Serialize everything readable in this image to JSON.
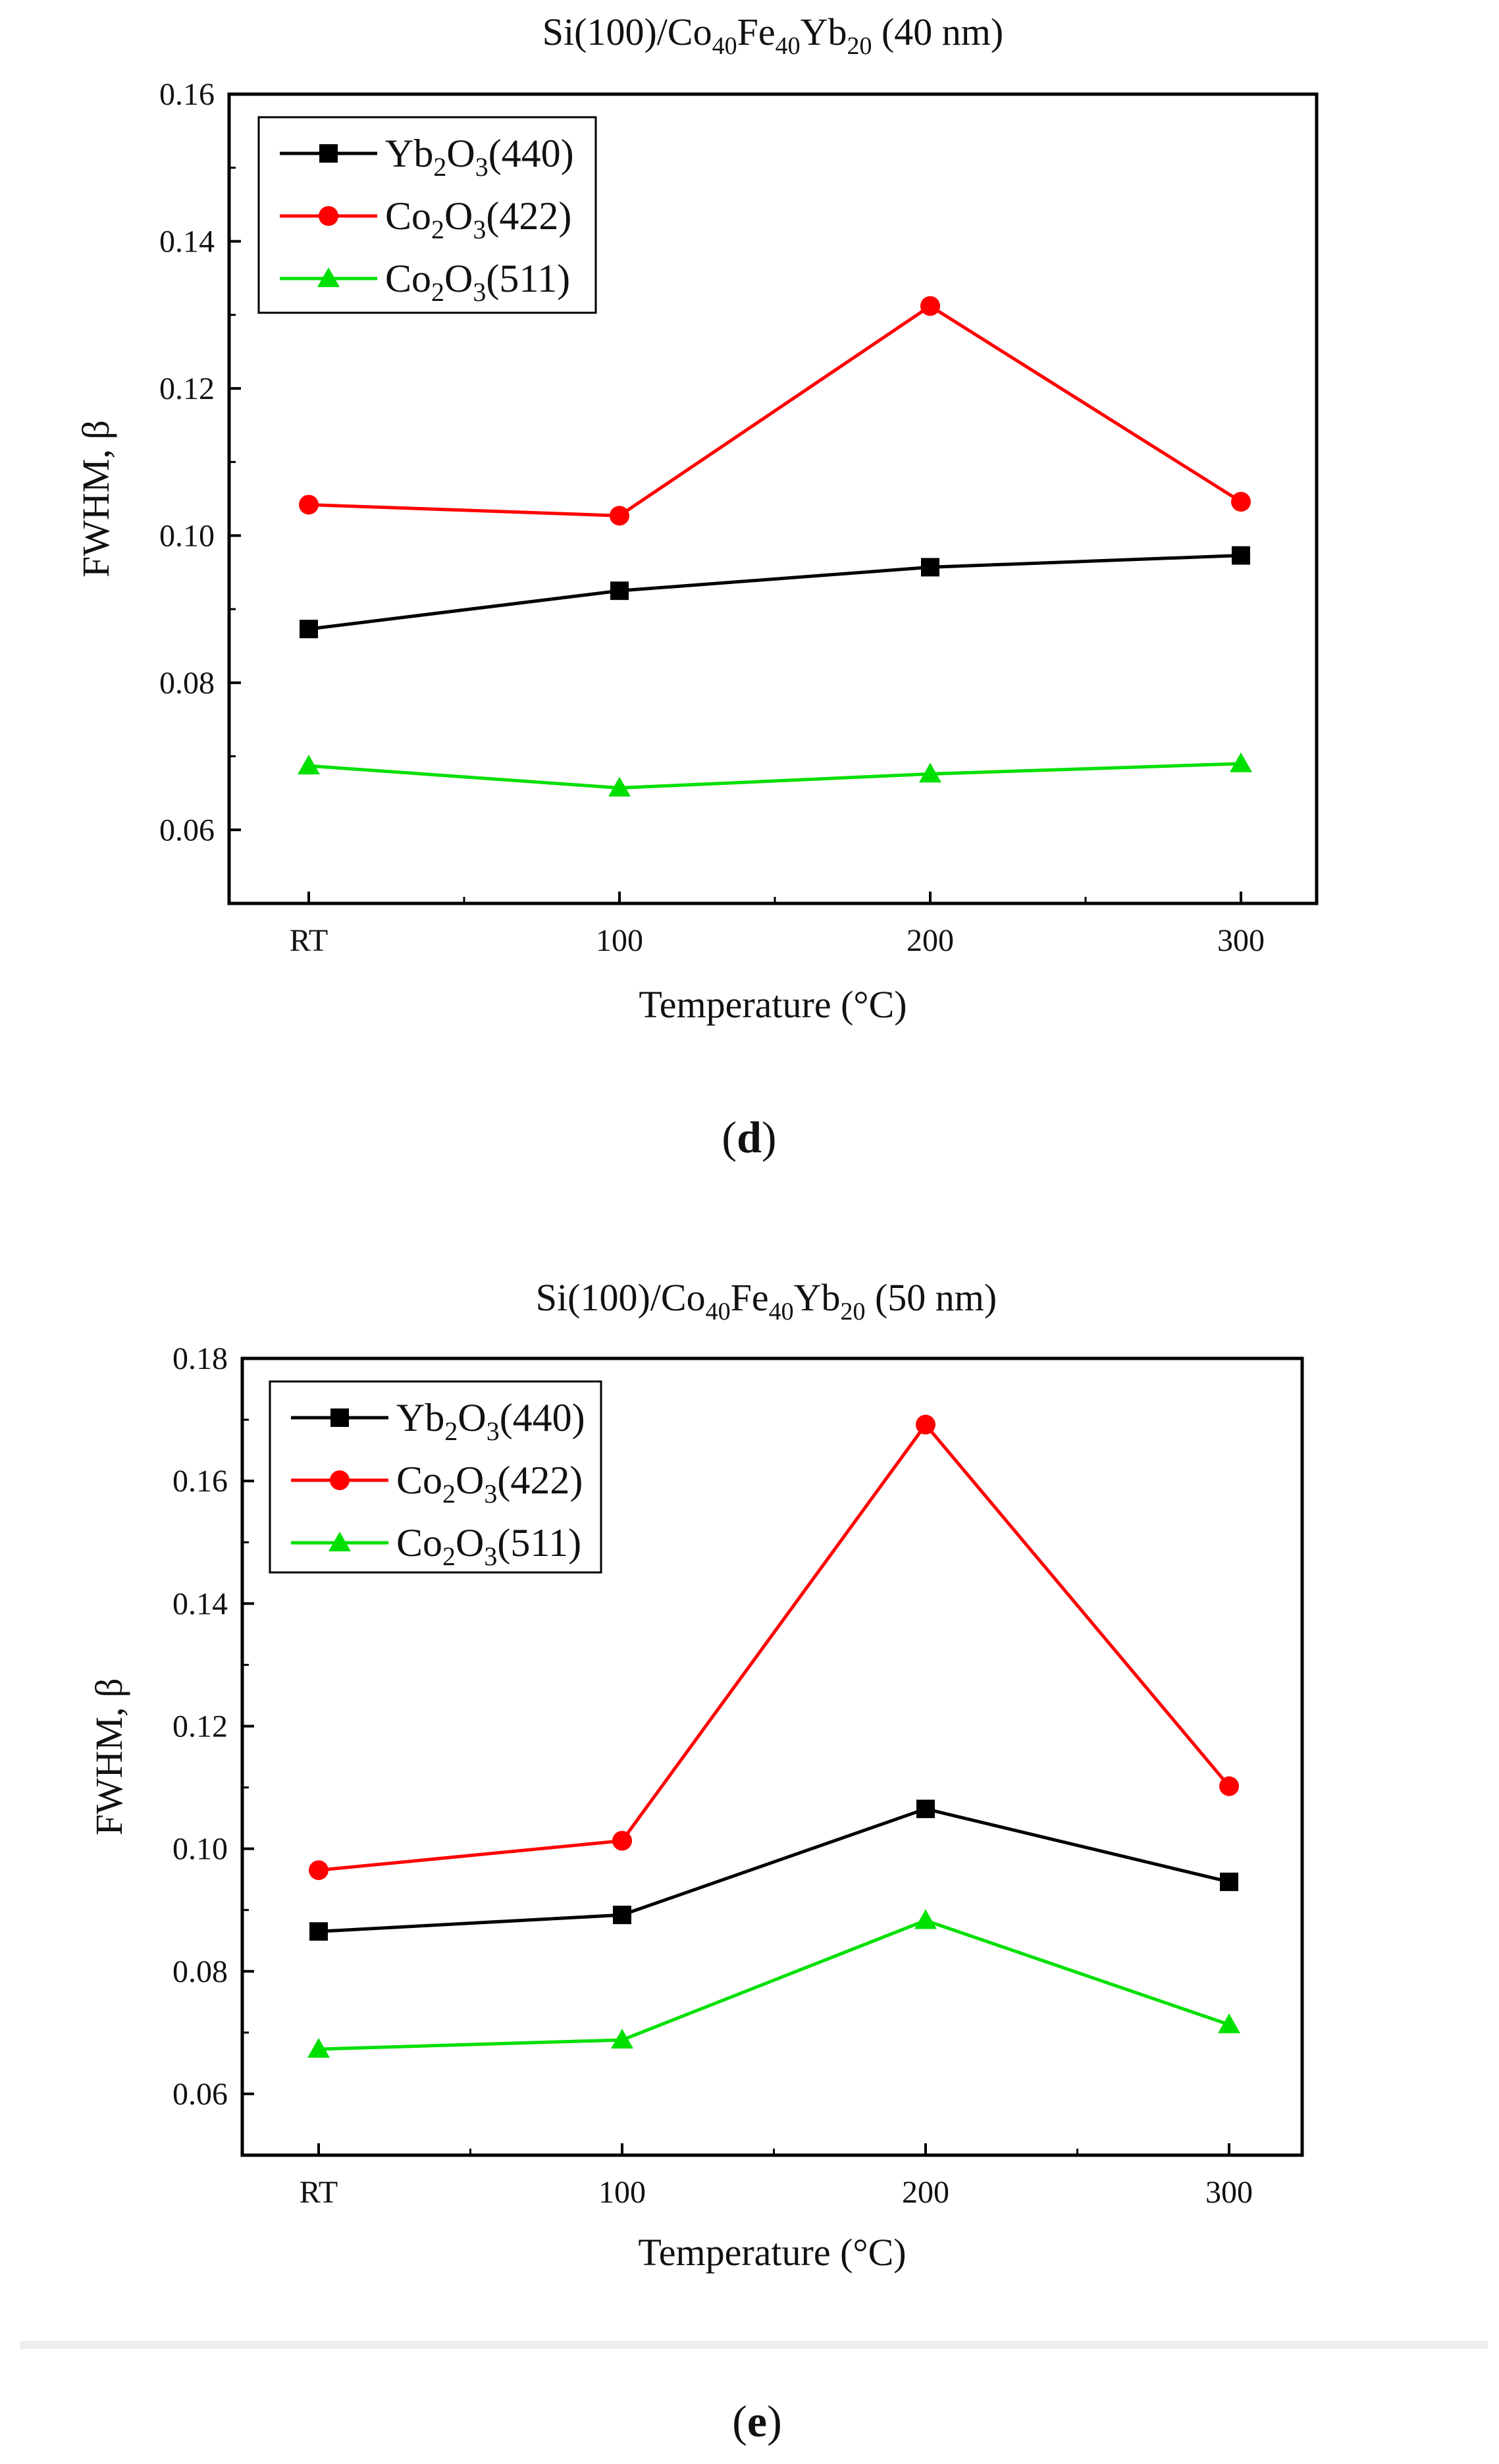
{
  "colors": {
    "Yb2O3": "#000000",
    "Co2O3_422": "#ff0000",
    "Co2O3_511": "#00e000"
  },
  "chart_data": [
    {
      "type": "line",
      "panel": "d",
      "caption": "(d)",
      "title": "Si(100)/Co40Fe40Yb20 (40 nm)",
      "title_parts": {
        "prefix": "Si(100)/Co",
        "co_sub": "40",
        "fe": "Fe",
        "fe_sub": "40",
        "yb": "Yb",
        "yb_sub": "20",
        "suffix": " (40 nm)"
      },
      "xlabel": "Temperature (°C)",
      "ylabel": "FWHM, β",
      "categories": [
        "RT",
        "100",
        "200",
        "300"
      ],
      "ylim": [
        0.05,
        0.16
      ],
      "yticks": [
        "0.06",
        "0.08",
        "0.10",
        "0.12",
        "0.14",
        "0.16"
      ],
      "legend_position": "top-left",
      "series": [
        {
          "name": "Yb2O3(440)",
          "label_parts": [
            "Yb",
            "2",
            "O",
            "3",
            "(440)"
          ],
          "marker": "square",
          "values": [
            0.0873,
            0.0925,
            0.0957,
            0.0973
          ]
        },
        {
          "name": "Co2O3(422)",
          "label_parts": [
            "Co",
            "2",
            "O",
            "3",
            "(422)"
          ],
          "marker": "circle",
          "values": [
            0.1042,
            0.1027,
            0.1312,
            0.1046
          ]
        },
        {
          "name": "Co2O3(511)",
          "label_parts": [
            "Co",
            "2",
            "O",
            "3",
            "(511)"
          ],
          "marker": "triangle",
          "values": [
            0.0687,
            0.0657,
            0.0676,
            0.069
          ]
        }
      ]
    },
    {
      "type": "line",
      "panel": "e",
      "caption": "(e)",
      "title": "Si(100)/Co40Fe40Yb20 (50 nm)",
      "title_parts": {
        "prefix": "Si(100)/Co",
        "co_sub": "40",
        "fe": "Fe",
        "fe_sub": "40",
        "yb": "Yb",
        "yb_sub": "20",
        "suffix": " (50 nm)"
      },
      "xlabel": "Temperature (°C)",
      "ylabel": "FWHM, β",
      "categories": [
        "RT",
        "100",
        "200",
        "300"
      ],
      "ylim": [
        0.05,
        0.18
      ],
      "yticks": [
        "0.06",
        "0.08",
        "0.10",
        "0.12",
        "0.14",
        "0.16",
        "0.18"
      ],
      "legend_position": "top-left",
      "series": [
        {
          "name": "Yb2O3(440)",
          "label_parts": [
            "Yb",
            "2",
            "O",
            "3",
            "(440)"
          ],
          "marker": "square",
          "values": [
            0.0865,
            0.0892,
            0.1065,
            0.0946
          ]
        },
        {
          "name": "Co2O3(422)",
          "label_parts": [
            "Co",
            "2",
            "O",
            "3",
            "(422)"
          ],
          "marker": "circle",
          "values": [
            0.0965,
            0.1013,
            0.1692,
            0.1102
          ]
        },
        {
          "name": "Co2O3(511)",
          "label_parts": [
            "Co",
            "2",
            "O",
            "3",
            "(511)"
          ],
          "marker": "triangle",
          "values": [
            0.0673,
            0.0688,
            0.0883,
            0.0713
          ]
        }
      ]
    }
  ]
}
